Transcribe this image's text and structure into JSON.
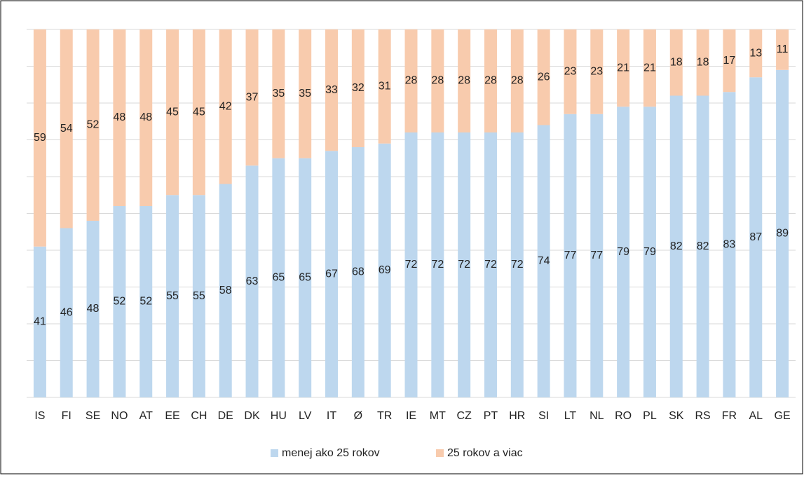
{
  "chart_data": {
    "type": "stacked_bar",
    "categories": [
      "IS",
      "FI",
      "SE",
      "NO",
      "AT",
      "EE",
      "CH",
      "DE",
      "DK",
      "HU",
      "LV",
      "IT",
      "Ø",
      "TR",
      "IE",
      "MT",
      "CZ",
      "PT",
      "HR",
      "SI",
      "LT",
      "NL",
      "RO",
      "PL",
      "SK",
      "RS",
      "FR",
      "AL",
      "GE"
    ],
    "series": [
      {
        "name": "menej ako 25 rokov",
        "color": "#bdd7ee",
        "values": [
          41,
          46,
          48,
          52,
          52,
          55,
          55,
          58,
          63,
          65,
          65,
          67,
          68,
          69,
          72,
          72,
          72,
          72,
          72,
          74,
          77,
          77,
          79,
          79,
          82,
          82,
          83,
          87,
          89
        ]
      },
      {
        "name": "25 rokov a viac",
        "color": "#f8cbad",
        "values": [
          59,
          54,
          52,
          48,
          48,
          45,
          45,
          42,
          37,
          35,
          35,
          33,
          32,
          31,
          28,
          28,
          28,
          28,
          28,
          26,
          23,
          23,
          21,
          21,
          18,
          18,
          17,
          13,
          11
        ]
      }
    ],
    "ylim": [
      0,
      100
    ],
    "yticks": [
      0,
      10,
      20,
      30,
      40,
      50,
      60,
      70,
      80,
      90,
      100
    ],
    "grid": true,
    "legend": "bottom"
  }
}
